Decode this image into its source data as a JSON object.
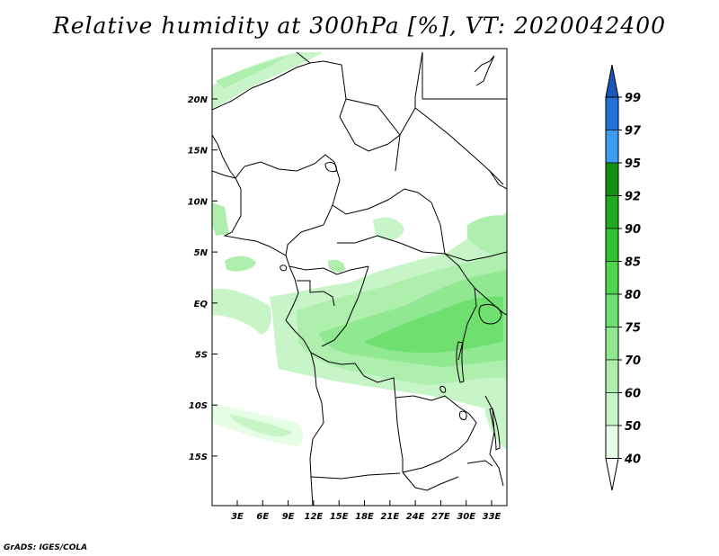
{
  "title": "Relative humidity at 300hPa [%], VT: 2020042400",
  "credit": "GrADS: IGES/COLA",
  "map": {
    "lat_labels": [
      "20N",
      "15N",
      "10N",
      "5N",
      "EQ",
      "5S",
      "10S",
      "15S"
    ],
    "lon_labels": [
      "3E",
      "6E",
      "9E",
      "12E",
      "15E",
      "18E",
      "21E",
      "24E",
      "27E",
      "30E",
      "33E"
    ]
  },
  "colorbar": {
    "levels": [
      "40",
      "50",
      "60",
      "70",
      "75",
      "80",
      "85",
      "90",
      "92",
      "95",
      "97",
      "99"
    ],
    "colors": [
      "#ffffff",
      "#e6fde6",
      "#c8f5c8",
      "#aeefae",
      "#90e890",
      "#6fe06f",
      "#4fd44f",
      "#33c233",
      "#1faa1f",
      "#129012",
      "#3d9bf0",
      "#2370d8",
      "#1a55b8"
    ]
  }
}
